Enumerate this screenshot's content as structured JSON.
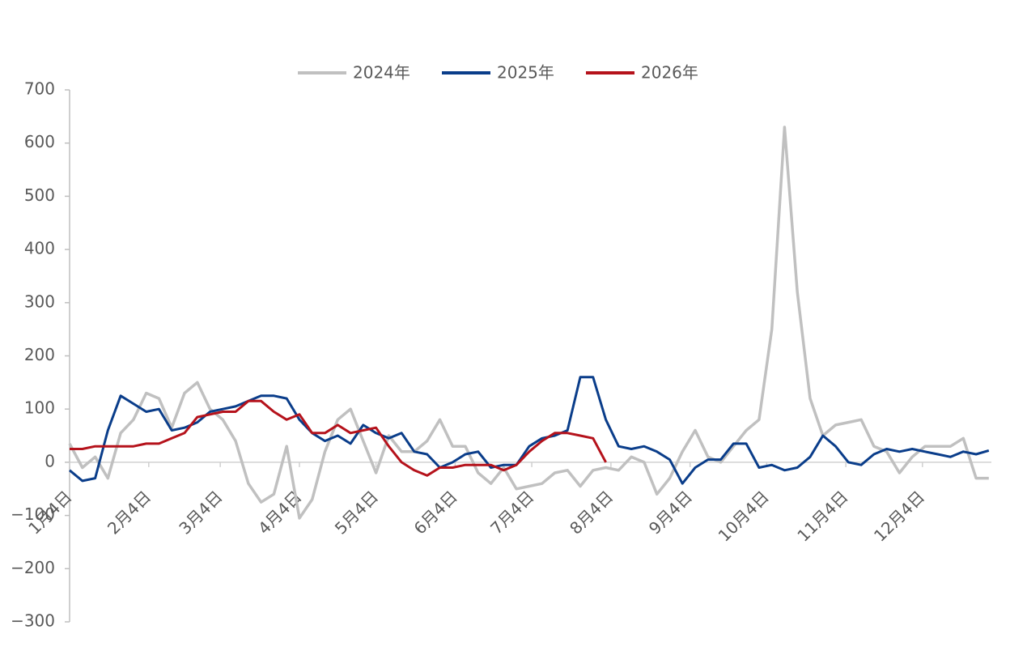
{
  "chart_data": {
    "type": "line",
    "x": [
      4,
      9,
      14,
      19,
      24,
      29,
      34,
      39,
      44,
      49,
      54,
      59,
      64,
      69,
      74,
      79,
      84,
      89,
      94,
      99,
      104,
      109,
      114,
      119,
      124,
      129,
      134,
      139,
      144,
      149,
      154,
      159,
      164,
      169,
      174,
      179,
      184,
      189,
      194,
      199,
      204,
      209,
      214,
      219,
      224,
      229,
      234,
      239,
      244,
      249,
      254,
      259,
      264,
      269,
      274,
      279,
      284,
      289,
      294,
      299,
      304,
      309,
      314,
      319,
      324,
      329,
      334,
      339,
      344,
      349,
      354,
      359,
      364
    ],
    "series": [
      {
        "name": "2024年",
        "color": "#c0c0c0",
        "values": [
          35,
          -10,
          10,
          -30,
          55,
          80,
          130,
          120,
          65,
          130,
          150,
          100,
          80,
          40,
          -40,
          -75,
          -60,
          30,
          -105,
          -70,
          20,
          80,
          100,
          40,
          -20,
          50,
          20,
          20,
          40,
          80,
          30,
          30,
          -20,
          -40,
          -10,
          -50,
          -45,
          -40,
          -20,
          -15,
          -45,
          -15,
          -10,
          -15,
          10,
          0,
          -60,
          -30,
          20,
          60,
          10,
          0,
          30,
          60,
          80,
          250,
          630,
          320,
          120,
          50,
          70,
          75,
          80,
          30,
          20,
          -20,
          10,
          30,
          30,
          30,
          45,
          -30,
          -30
        ]
      },
      {
        "name": "2025年",
        "color": "#0a3d8a",
        "values": [
          -15,
          -35,
          -30,
          60,
          125,
          110,
          95,
          100,
          60,
          65,
          75,
          95,
          100,
          105,
          115,
          125,
          125,
          120,
          80,
          55,
          40,
          50,
          35,
          70,
          55,
          45,
          55,
          20,
          15,
          -10,
          0,
          15,
          20,
          -10,
          -5,
          -5,
          30,
          45,
          50,
          60,
          160,
          160,
          80,
          30,
          25,
          30,
          20,
          5,
          -40,
          -10,
          5,
          5,
          35,
          35,
          -10,
          -5,
          -15,
          -10,
          10,
          50,
          30,
          0,
          -5,
          15,
          25,
          20,
          25,
          20,
          15,
          10,
          20,
          15,
          22
        ]
      },
      {
        "name": "2026年",
        "color": "#b5121b",
        "values": [
          25,
          25,
          30,
          30,
          30,
          30,
          35,
          35,
          45,
          55,
          85,
          90,
          95,
          95,
          115,
          115,
          95,
          80,
          90,
          55,
          55,
          70,
          55,
          60,
          65,
          30,
          0,
          -15,
          -25,
          -10,
          -10,
          -5,
          -5,
          -5,
          -15,
          -5,
          20,
          40,
          55,
          55,
          50,
          45,
          0,
          null,
          null,
          null,
          null,
          null,
          null,
          null,
          null,
          null,
          null,
          null,
          null,
          null,
          null,
          null,
          null,
          null,
          null,
          null,
          null,
          null,
          null,
          null,
          null,
          null,
          null,
          null,
          null,
          null,
          null
        ]
      }
    ],
    "xlim": [
      4,
      365
    ],
    "xticks": [
      {
        "value": 4,
        "label": "1月4日"
      },
      {
        "value": 35,
        "label": "2月4日"
      },
      {
        "value": 63,
        "label": "3月4日"
      },
      {
        "value": 94,
        "label": "4月4日"
      },
      {
        "value": 124,
        "label": "5月4日"
      },
      {
        "value": 155,
        "label": "6月4日"
      },
      {
        "value": 185,
        "label": "7月4日"
      },
      {
        "value": 216,
        "label": "8月4日"
      },
      {
        "value": 247,
        "label": "9月4日"
      },
      {
        "value": 277,
        "label": "10月4日"
      },
      {
        "value": 308,
        "label": "11月4日"
      },
      {
        "value": 338,
        "label": "12月4日"
      }
    ],
    "ylim": [
      -300,
      700
    ],
    "yticks": [
      {
        "value": -300,
        "label": "−300"
      },
      {
        "value": -200,
        "label": "−200"
      },
      {
        "value": -100,
        "label": "−100"
      },
      0,
      100,
      200,
      300,
      400,
      500,
      600,
      700
    ],
    "grid": false,
    "legend": "top"
  }
}
